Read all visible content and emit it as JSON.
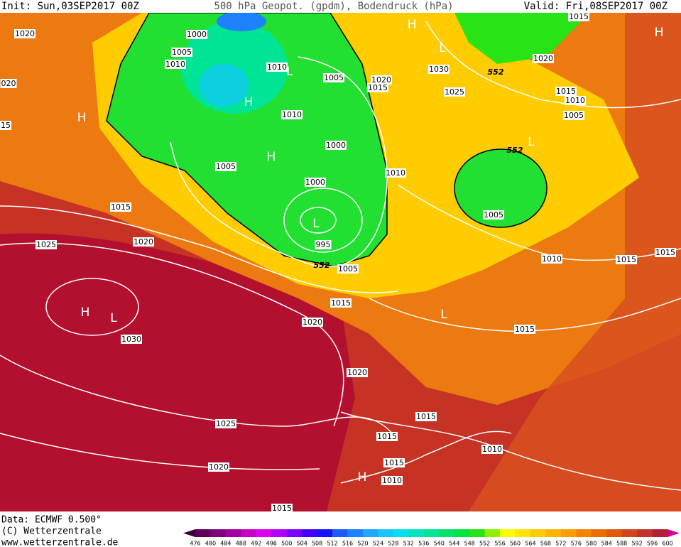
{
  "header": {
    "init": "Init: Sun,03SEP2017 00Z",
    "title": "500 hPa Geopot. (gpdm), Bodendruck (hPa)",
    "valid": "Valid: Fri,08SEP2017 00Z"
  },
  "footer": {
    "data": "Data: ECMWF  0.500°",
    "copyright": "(C) Wetterzentrale",
    "url": "www.wetterzentrale.de"
  },
  "map": {
    "isobar_labels": [
      "1020",
      "1000",
      "1005",
      "1010",
      "1010",
      "1005",
      "1020",
      "1015",
      "1030",
      "1025",
      "1020",
      "1015",
      "1015",
      "1010",
      "1005",
      "1000",
      "1010",
      "1005",
      "1000",
      "1010",
      "1015",
      "1020",
      "1025",
      "995",
      "1005",
      "1005",
      "1010",
      "1015",
      "1015",
      "1015",
      "1020",
      "1030",
      "1015",
      "1020",
      "1015",
      "1015",
      "1025",
      "1020",
      "1015",
      "1010",
      "1010",
      "1015",
      "020",
      "15"
    ],
    "contour_labels": [
      "552",
      "552",
      "552"
    ],
    "pressure_centers": [
      "H",
      "L",
      "H",
      "H",
      "H",
      "L",
      "H",
      "L",
      "L",
      "H",
      "L",
      "L",
      "H"
    ]
  },
  "colorbar": {
    "levels": [
      476,
      480,
      484,
      488,
      492,
      496,
      500,
      504,
      508,
      512,
      516,
      520,
      524,
      528,
      532,
      536,
      540,
      544,
      548,
      552,
      556,
      560,
      564,
      568,
      572,
      576,
      580,
      584,
      588,
      592,
      596,
      600
    ],
    "colors": [
      "#3a003a",
      "#5c005c",
      "#7e007e",
      "#a000a0",
      "#c800c8",
      "#e000f0",
      "#b000ff",
      "#7a00ff",
      "#4400ff",
      "#1414ff",
      "#1e5aff",
      "#1e82ff",
      "#1ea8ff",
      "#14c8ff",
      "#00e0f0",
      "#00e4c0",
      "#00e496",
      "#00e46e",
      "#00e43c",
      "#28e414",
      "#8cf000",
      "#ffff00",
      "#ffe600",
      "#ffcc00",
      "#ffb400",
      "#ff9c00",
      "#f58200",
      "#eb6e00",
      "#e15a0a",
      "#d2461e",
      "#c3322d",
      "#b41e37",
      "#a50a3c",
      "#d2008c"
    ]
  }
}
